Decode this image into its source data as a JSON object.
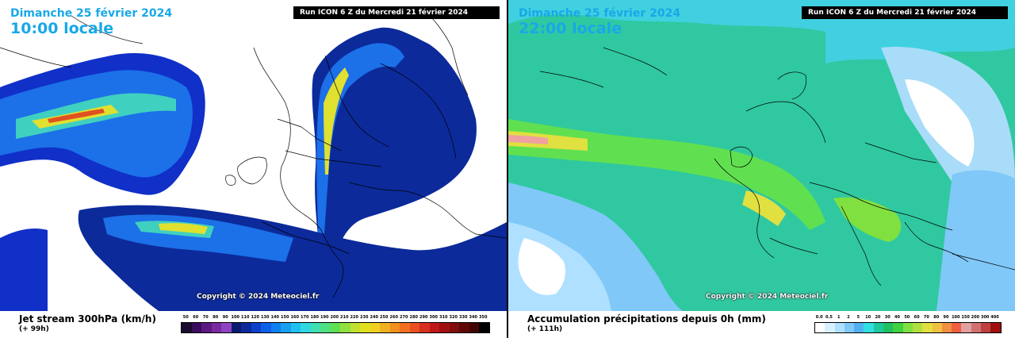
{
  "left_panel": {
    "date": "Dimanche 25 février 2024",
    "time": "10:00 locale",
    "run": "Run ICON 6 Z du Mercredi 21 février 2024",
    "copyright": "Copyright © 2024 Meteociel.fr",
    "title": "Jet stream 300hPa (km/h)",
    "lead": "(+ 99h)",
    "legend_values": [
      "50",
      "60",
      "70",
      "80",
      "90",
      "100",
      "110",
      "120",
      "130",
      "140",
      "150",
      "160",
      "170",
      "180",
      "190",
      "200",
      "210",
      "220",
      "230",
      "240",
      "250",
      "260",
      "270",
      "280",
      "290",
      "300",
      "310",
      "320",
      "330",
      "340",
      "350"
    ],
    "legend_colors": [
      "#1a0a2e",
      "#3a0d5c",
      "#5c1a80",
      "#7a2aa0",
      "#8e44c0",
      "#0a1a6e",
      "#0c2a9a",
      "#0c40c8",
      "#0c60e8",
      "#1080f0",
      "#18a0f0",
      "#20c0f0",
      "#30d8e0",
      "#40e0b0",
      "#50e080",
      "#60e050",
      "#90e040",
      "#c0e030",
      "#e0e020",
      "#f0d020",
      "#f0b020",
      "#f09020",
      "#f07020",
      "#e85020",
      "#d83020",
      "#c01818",
      "#a01010",
      "#800c0c",
      "#600808",
      "#400404",
      "#000000"
    ]
  },
  "right_panel": {
    "date": "Dimanche 25 février 2024",
    "time": "22:00 locale",
    "run": "Run ICON 6 Z du Mercredi 21 février 2024",
    "copyright": "Copyright © 2024 Meteociel.fr",
    "title": "Accumulation précipitations depuis 0h (mm)",
    "lead": "(+ 111h)",
    "legend_values": [
      "0.0",
      "0.5",
      "1",
      "2",
      "5",
      "10",
      "20",
      "30",
      "40",
      "50",
      "60",
      "70",
      "80",
      "90",
      "100",
      "150",
      "200",
      "300",
      "400"
    ],
    "legend_colors": [
      "#ffffff",
      "#d8f0ff",
      "#b0e0ff",
      "#80c8f8",
      "#50b0f0",
      "#30e0e0",
      "#20c8a0",
      "#20c060",
      "#40d040",
      "#80e040",
      "#b0e040",
      "#e0e040",
      "#f0c040",
      "#f09040",
      "#f06040",
      "#e0a0a0",
      "#d07070",
      "#c04040",
      "#a01010"
    ]
  }
}
